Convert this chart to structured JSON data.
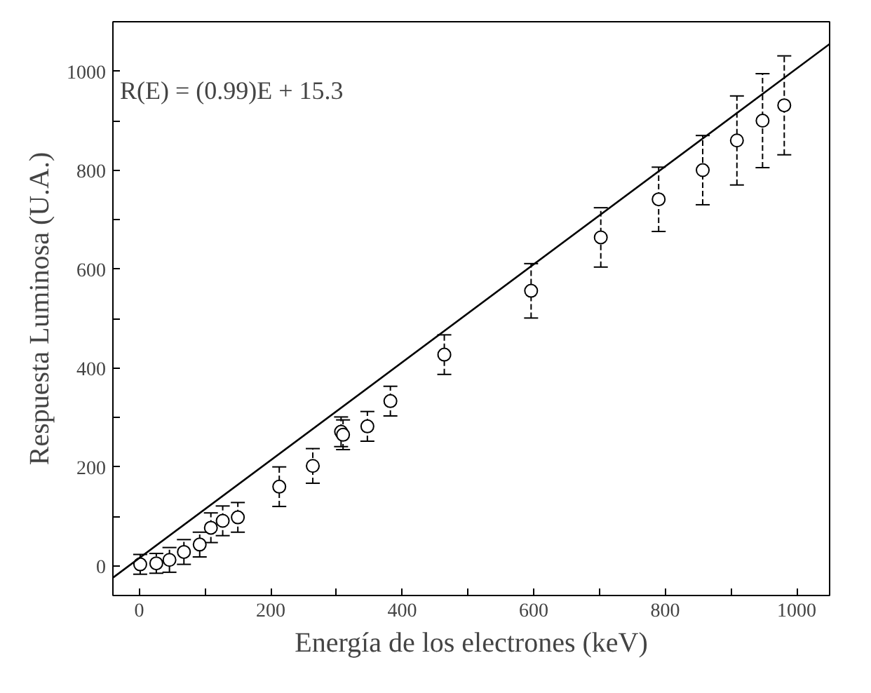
{
  "chart_data": {
    "type": "scatter",
    "xlabel": "Energía de los electrones (keV)",
    "ylabel": "Respuesta Luminosa (U.A.)",
    "annotations": [
      "R(E) = (0.99)E + 15.3"
    ],
    "xlim": [
      -40,
      1050
    ],
    "ylim": [
      -60,
      1100
    ],
    "xticks": [
      0,
      {
        "value": 100,
        "label": null
      },
      200,
      {
        "value": 300,
        "label": null
      },
      400,
      {
        "value": 500,
        "label": null
      },
      600,
      {
        "value": 700,
        "label": null
      },
      800,
      {
        "value": 900,
        "label": null
      },
      1000
    ],
    "yticks": [
      0,
      {
        "value": 100,
        "label": null
      },
      200,
      {
        "value": 300,
        "label": null
      },
      400,
      {
        "value": 500,
        "label": null
      },
      600,
      {
        "value": 700,
        "label": null
      },
      800,
      {
        "value": 900,
        "label": null
      },
      1000
    ],
    "grid": false,
    "marker": "circle",
    "series": [
      {
        "color": "#000000",
        "x": [
          1.5,
          26,
          46,
          68,
          92,
          109,
          127,
          150,
          213,
          264,
          307,
          310,
          347,
          382,
          464,
          596,
          702,
          790,
          857,
          909,
          948,
          981
        ],
        "values": [
          3,
          5,
          12,
          28,
          43,
          77,
          91,
          98,
          160,
          202,
          271,
          265,
          282,
          333,
          427,
          556,
          664,
          741,
          800,
          860,
          900,
          931
        ],
        "errors": [
          20,
          20,
          25,
          25,
          25,
          30,
          30,
          30,
          40,
          35,
          30,
          30,
          30,
          30,
          40,
          55,
          60,
          65,
          70,
          90,
          95,
          100
        ]
      },
      {
        "type": "line",
        "color": "#000000",
        "line_style": "solid",
        "marker": "none",
        "x": [
          -40,
          1050
        ],
        "values": [
          -24,
          1055
        ]
      }
    ]
  }
}
